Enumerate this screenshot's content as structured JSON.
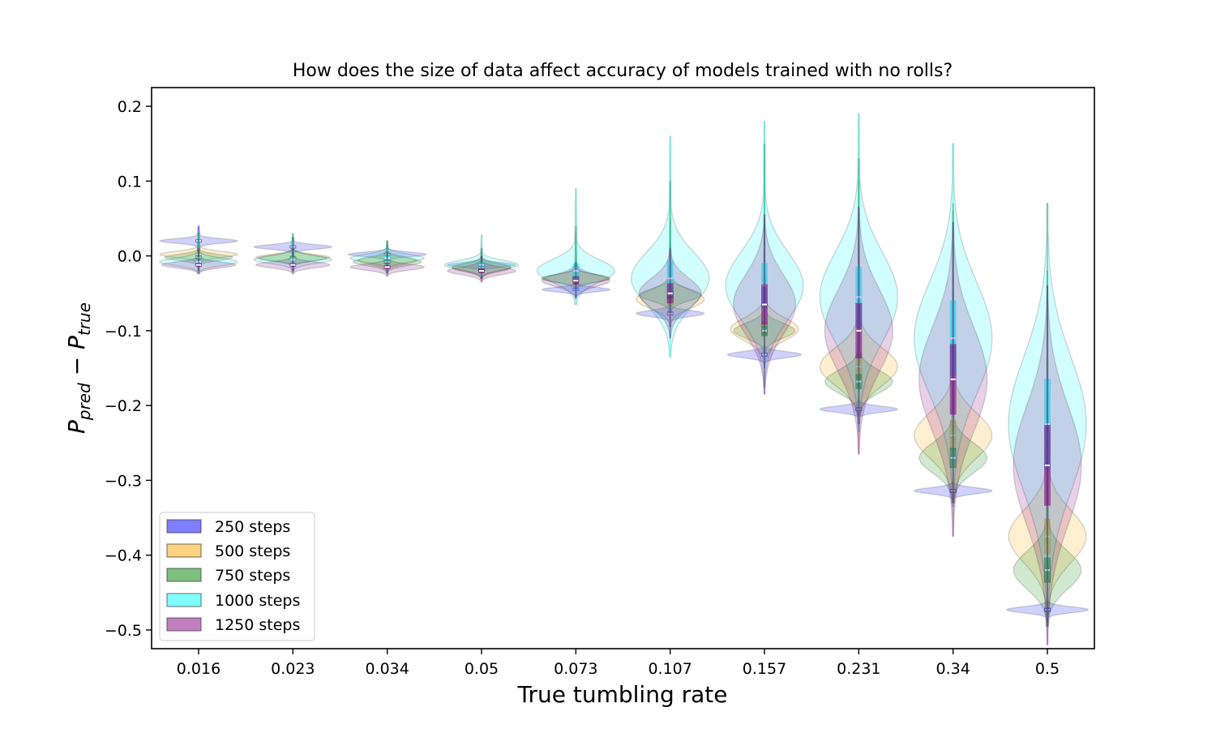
{
  "chart_data": {
    "type": "violin",
    "title": "How does the size of data affect accuracy of models trained with no rolls?",
    "xlabel": "True tumbling rate",
    "ylabel_main": "P",
    "ylabel_sub1": "pred",
    "ylabel_minus": " − ",
    "ylabel_sub2": "true",
    "categories": [
      "0.016",
      "0.023",
      "0.034",
      "0.05",
      "0.073",
      "0.107",
      "0.157",
      "0.231",
      "0.34",
      "0.5"
    ],
    "ylim": [
      -0.525,
      0.225
    ],
    "yticks": [
      0.2,
      0.1,
      0.0,
      -0.1,
      -0.2,
      -0.3,
      -0.4,
      -0.5
    ],
    "ytick_labels": [
      "0.2",
      "0.1",
      "0.0",
      "−0.1",
      "−0.2",
      "−0.3",
      "−0.4",
      "−0.5"
    ],
    "legend_position": "lower-left",
    "series": [
      {
        "name": "250 steps",
        "color": "#0000ff",
        "medians": [
          0.02,
          0.012,
          0.002,
          -0.012,
          -0.045,
          -0.077,
          -0.132,
          -0.205,
          -0.314,
          -0.473
        ],
        "spread": [
          0.003,
          0.003,
          0.003,
          0.003,
          0.003,
          0.004,
          0.004,
          0.004,
          0.004,
          0.004
        ],
        "whisker_min": [
          -0.008,
          -0.01,
          -0.012,
          -0.018,
          -0.055,
          -0.095,
          -0.15,
          -0.225,
          -0.328,
          -0.49
        ],
        "whisker_max": [
          0.04,
          0.025,
          0.015,
          0.005,
          -0.035,
          -0.068,
          -0.122,
          -0.195,
          -0.305,
          -0.462
        ],
        "width": [
          0.4,
          0.4,
          0.4,
          0.35,
          0.35,
          0.35,
          0.38,
          0.4,
          0.4,
          0.42
        ]
      },
      {
        "name": "500 steps",
        "color": "#ffa500",
        "medians": [
          0.002,
          -0.002,
          -0.006,
          -0.015,
          -0.03,
          -0.058,
          -0.098,
          -0.148,
          -0.24,
          -0.375
        ],
        "spread": [
          0.004,
          0.004,
          0.005,
          0.005,
          0.005,
          0.012,
          0.015,
          0.025,
          0.03,
          0.035
        ],
        "whisker_min": [
          -0.02,
          -0.02,
          -0.022,
          -0.028,
          -0.04,
          -0.07,
          -0.115,
          -0.195,
          -0.29,
          -0.455
        ],
        "whisker_max": [
          0.03,
          0.03,
          0.02,
          0.01,
          0.03,
          0.05,
          0.05,
          0.1,
          0.06,
          0.07
        ],
        "width": [
          0.4,
          0.38,
          0.3,
          0.3,
          0.35,
          0.35,
          0.35,
          0.4,
          0.4,
          0.4
        ]
      },
      {
        "name": "750 steps",
        "color": "#008000",
        "medians": [
          -0.002,
          -0.003,
          -0.008,
          -0.016,
          -0.03,
          -0.052,
          -0.1,
          -0.168,
          -0.27,
          -0.42
        ],
        "spread": [
          0.004,
          0.004,
          0.005,
          0.005,
          0.005,
          0.008,
          0.01,
          0.015,
          0.02,
          0.025
        ],
        "whisker_min": [
          -0.02,
          -0.02,
          -0.022,
          -0.028,
          -0.04,
          -0.06,
          -0.115,
          -0.185,
          -0.285,
          -0.44
        ],
        "whisker_max": [
          0.03,
          0.025,
          0.02,
          0.01,
          0.04,
          0.1,
          0.15,
          0.13,
          0.07,
          -0.02
        ],
        "width": [
          0.35,
          0.35,
          0.35,
          0.3,
          0.35,
          0.32,
          0.32,
          0.35,
          0.35,
          0.35
        ]
      },
      {
        "name": "1000 steps",
        "color": "#00ffff",
        "medians": [
          -0.008,
          -0.005,
          -0.003,
          -0.012,
          -0.02,
          -0.03,
          -0.04,
          -0.055,
          -0.11,
          -0.225
        ],
        "spread": [
          0.005,
          0.005,
          0.005,
          0.006,
          0.015,
          0.035,
          0.045,
          0.06,
          0.075,
          0.09
        ],
        "whisker_min": [
          -0.02,
          -0.02,
          -0.022,
          -0.025,
          -0.05,
          -0.1,
          -0.14,
          -0.2,
          -0.31,
          -0.44
        ],
        "whisker_max": [
          0.03,
          0.03,
          0.02,
          0.028,
          0.09,
          0.16,
          0.18,
          0.19,
          0.15,
          0.07
        ],
        "width": [
          0.4,
          0.4,
          0.38,
          0.38,
          0.4,
          0.4,
          0.4,
          0.4,
          0.4,
          0.4
        ]
      },
      {
        "name": "1250 steps",
        "color": "#800080",
        "medians": [
          -0.012,
          -0.012,
          -0.015,
          -0.02,
          -0.033,
          -0.05,
          -0.065,
          -0.1,
          -0.165,
          -0.28
        ],
        "spread": [
          0.004,
          0.004,
          0.004,
          0.005,
          0.008,
          0.02,
          0.04,
          0.055,
          0.07,
          0.08
        ],
        "whisker_min": [
          -0.02,
          -0.02,
          -0.025,
          -0.03,
          -0.045,
          -0.1,
          -0.15,
          -0.22,
          -0.3,
          -0.45
        ],
        "whisker_max": [
          0.01,
          0.01,
          0.005,
          0.0,
          -0.02,
          -0.02,
          0.02,
          0.02,
          -0.03,
          -0.12
        ],
        "width": [
          0.38,
          0.38,
          0.38,
          0.35,
          0.35,
          0.32,
          0.32,
          0.35,
          0.35,
          0.35
        ]
      }
    ]
  }
}
